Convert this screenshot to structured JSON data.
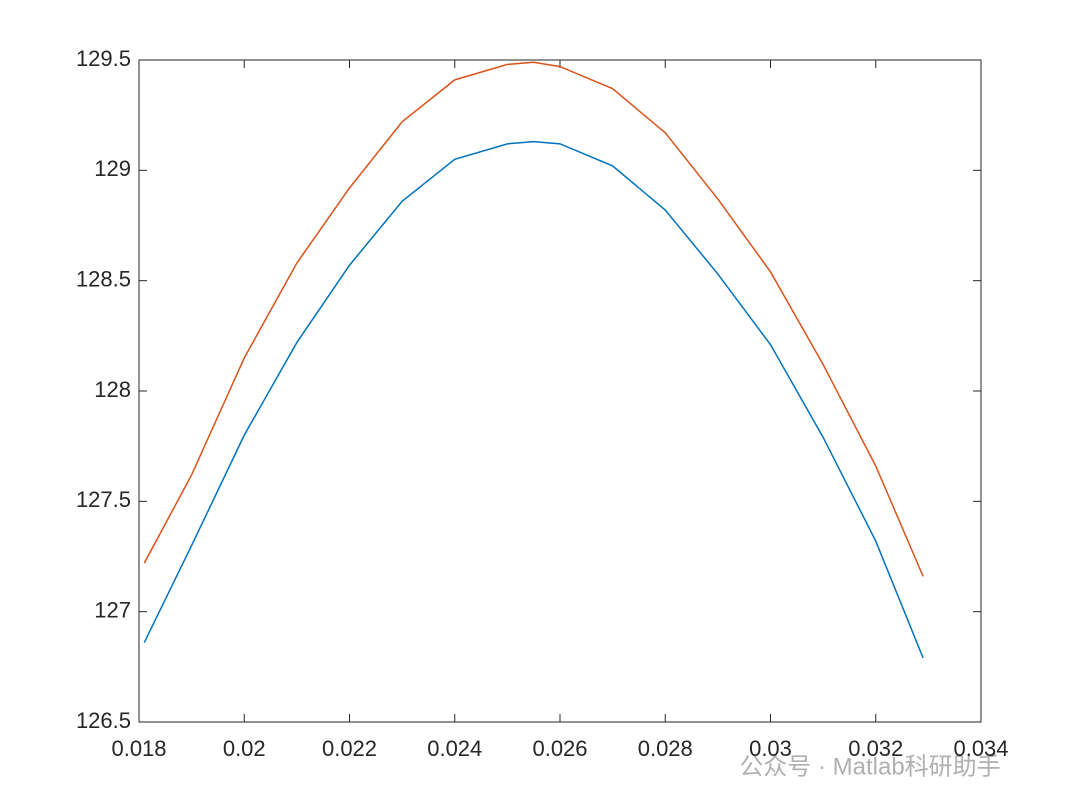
{
  "chart_data": {
    "type": "line",
    "x": [
      0.0181,
      0.019,
      0.02,
      0.021,
      0.022,
      0.023,
      0.024,
      0.025,
      0.0255,
      0.026,
      0.027,
      0.028,
      0.029,
      0.03,
      0.031,
      0.032,
      0.0329
    ],
    "series": [
      {
        "color": "#0072bd",
        "values": [
          126.86,
          127.3,
          127.8,
          128.22,
          128.57,
          128.86,
          129.05,
          129.12,
          129.13,
          129.12,
          129.02,
          128.82,
          128.53,
          128.21,
          127.79,
          127.32,
          126.79
        ]
      },
      {
        "color": "#d95319",
        "values": [
          127.22,
          127.62,
          128.15,
          128.58,
          128.92,
          129.22,
          129.41,
          129.48,
          129.49,
          129.47,
          129.37,
          129.17,
          128.87,
          128.54,
          128.12,
          127.66,
          127.16
        ]
      }
    ],
    "xlim": [
      0.018,
      0.034
    ],
    "xticks": [
      0.018,
      0.02,
      0.022,
      0.024,
      0.026,
      0.028,
      0.03,
      0.032,
      0.034
    ],
    "ylim": [
      126.5,
      129.5
    ],
    "yticks": [
      126.5,
      127,
      127.5,
      128,
      128.5,
      129,
      129.5
    ],
    "grid": false,
    "watermark": "公众号 · Matlab科研助手"
  }
}
